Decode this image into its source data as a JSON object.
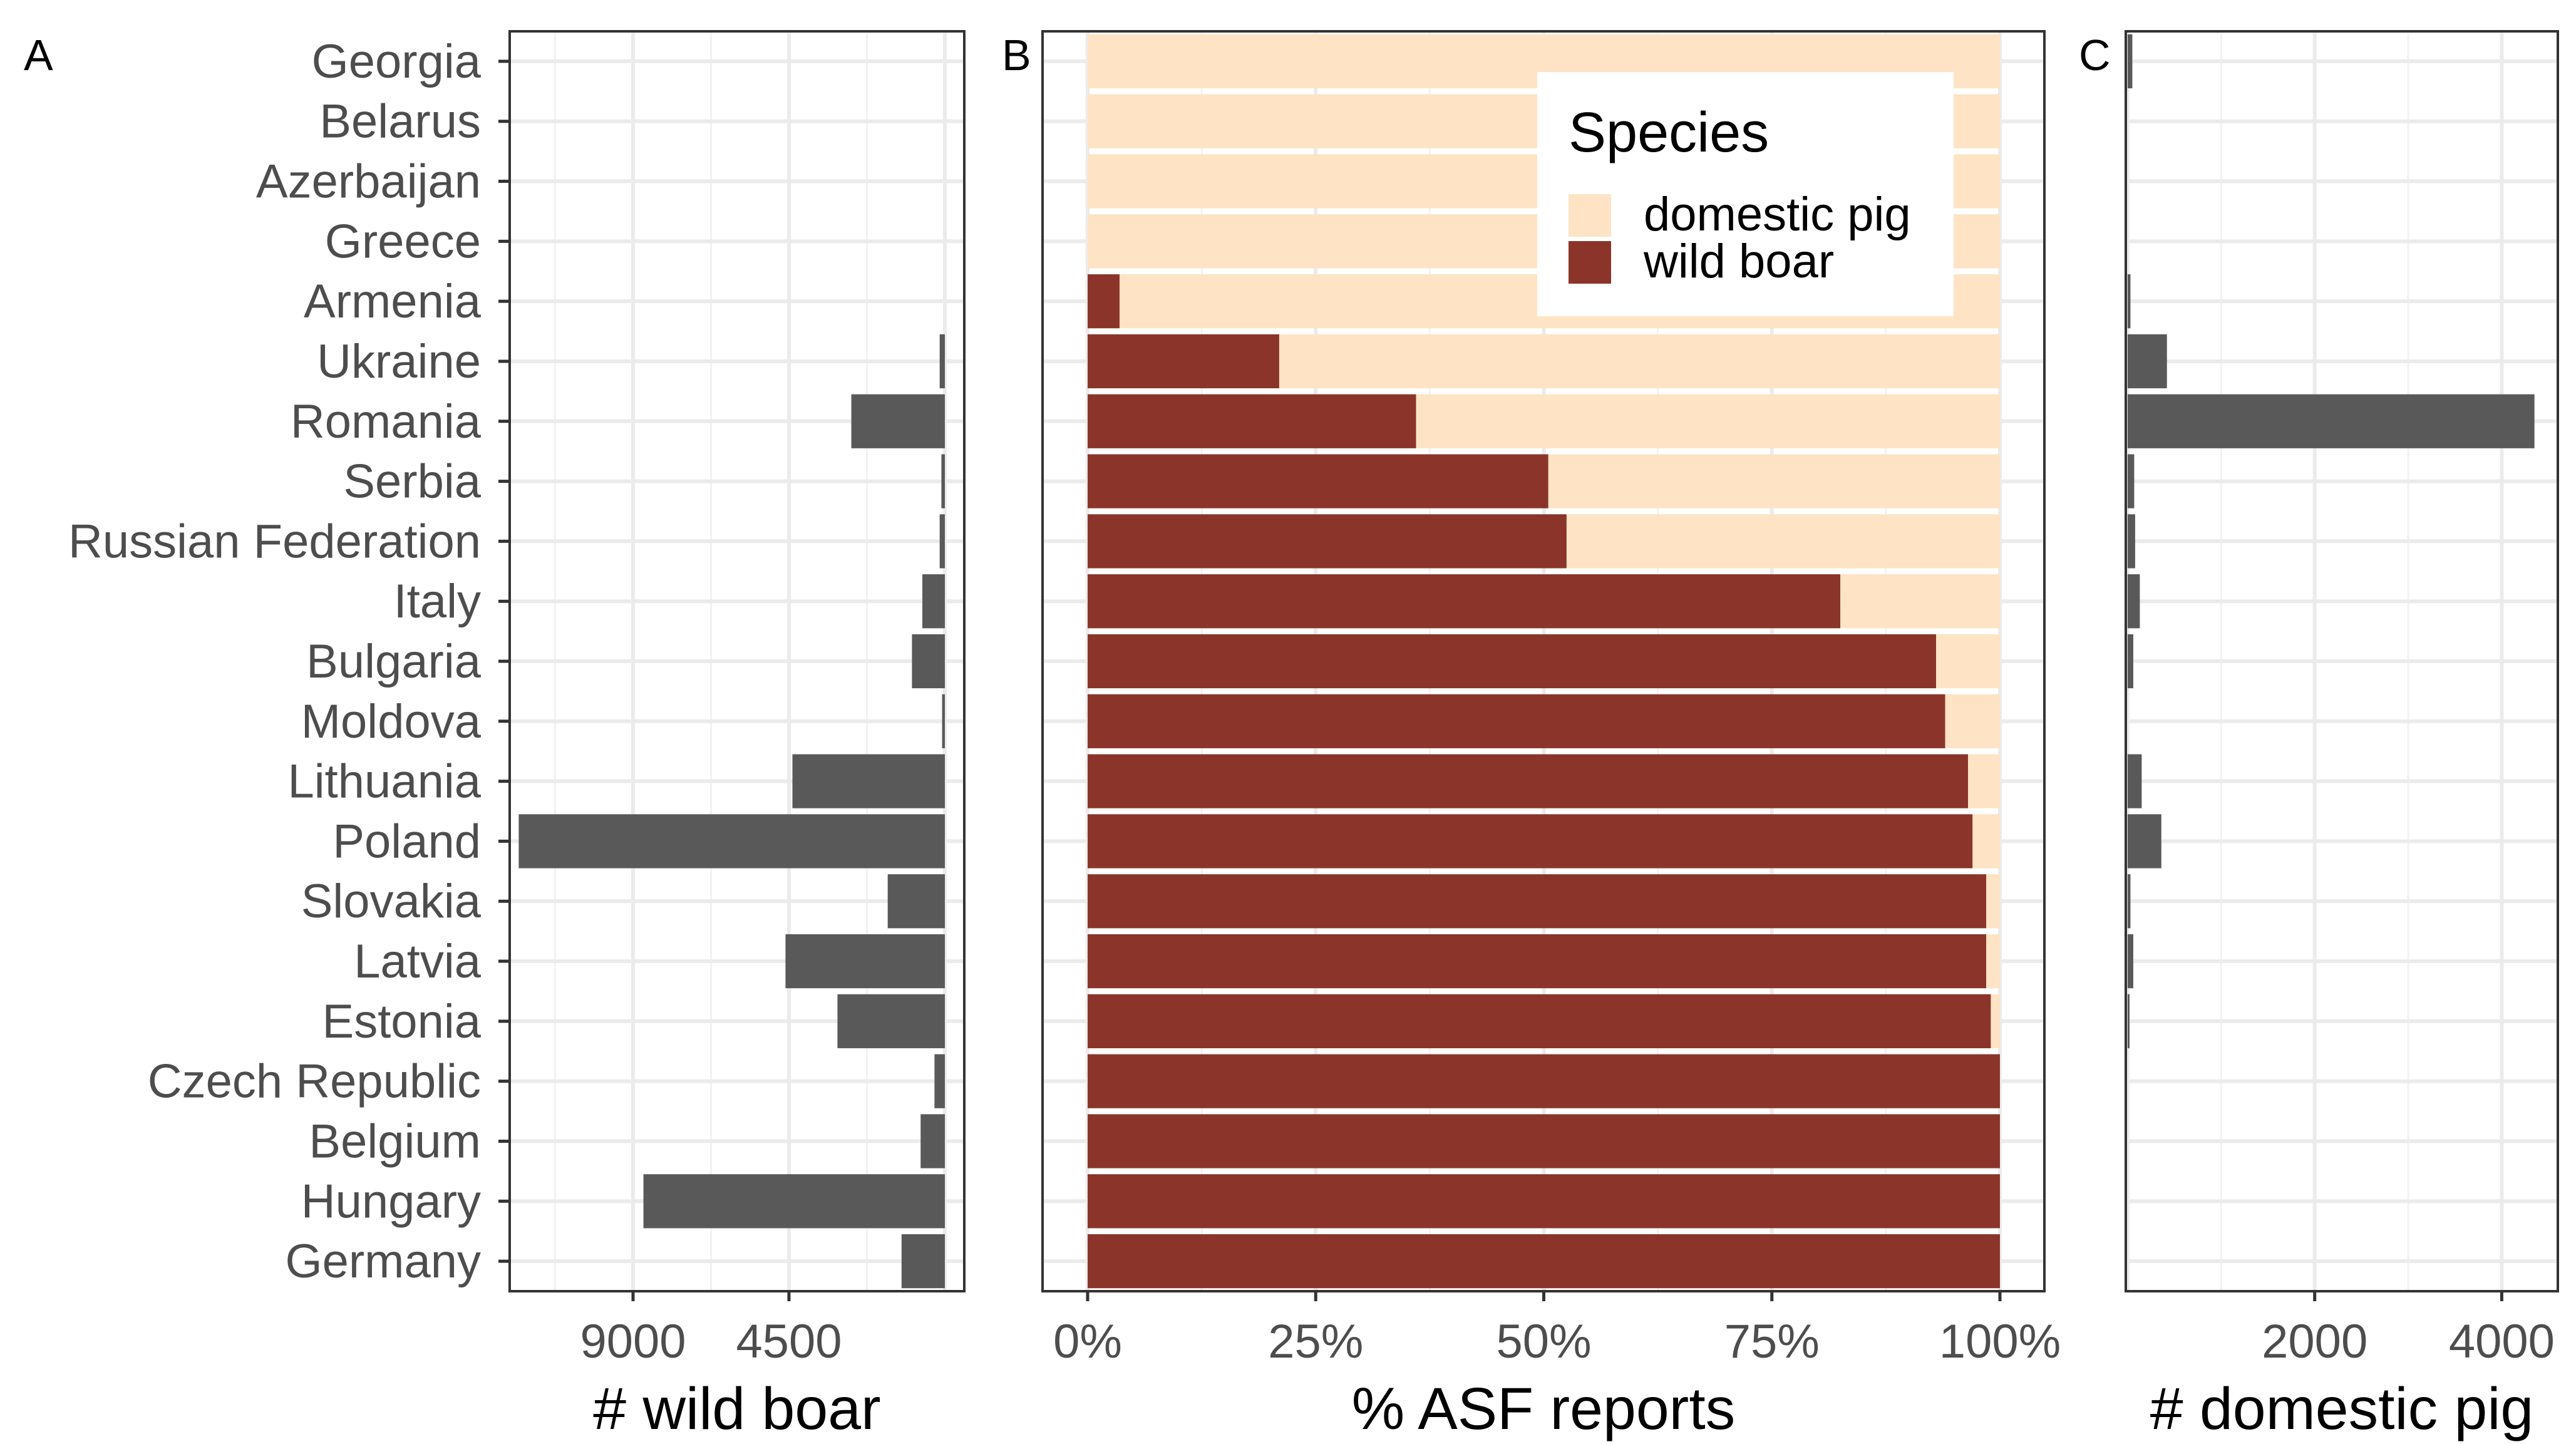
{
  "chart_data": {
    "type": "bar",
    "countries": [
      "Georgia",
      "Belarus",
      "Azerbaijan",
      "Greece",
      "Armenia",
      "Ukraine",
      "Romania",
      "Serbia",
      "Russian Federation",
      "Italy",
      "Bulgaria",
      "Moldova",
      "Lithuania",
      "Poland",
      "Slovakia",
      "Latvia",
      "Estonia",
      "Czech Republic",
      "Belgium",
      "Hungary",
      "Germany"
    ],
    "panels": [
      {
        "tag": "A",
        "type": "bar",
        "orientation": "horizontal",
        "x_reversed": true,
        "xlabel": "# wild boar",
        "xlim": [
          0,
          12000
        ],
        "xticks": [
          9000,
          4500
        ],
        "xtick_labels": [
          "9000",
          "4500"
        ],
        "bar_color": "#595959",
        "series": [
          {
            "values": [
              0,
              0,
              0,
              0,
              0,
              150,
              2700,
              100,
              150,
              650,
              950,
              80,
              4400,
              12300,
              1650,
              4600,
              3100,
              300,
              700,
              8700,
              1250
            ]
          }
        ]
      },
      {
        "tag": "B",
        "type": "bar",
        "stacked": true,
        "orientation": "horizontal",
        "xlabel": "% ASF reports",
        "xlim": [
          0,
          100
        ],
        "xticks": [
          0,
          25,
          50,
          75,
          100
        ],
        "xtick_labels": [
          "0%",
          "25%",
          "50%",
          "75%",
          "100%"
        ],
        "series": [
          {
            "name": "wild boar",
            "color": "#8b352a",
            "values": [
              0,
              0,
              0,
              0,
              3.5,
              21,
              36,
              50.5,
              52.5,
              82.5,
              93,
              94,
              96.5,
              97,
              98.5,
              98.5,
              99,
              100,
              100,
              100,
              100
            ]
          },
          {
            "name": "domestic pig",
            "color": "#fee3c4",
            "values": [
              100,
              100,
              100,
              100,
              96.5,
              79,
              64,
              49.5,
              47.5,
              17.5,
              7,
              6,
              3.5,
              3,
              1.5,
              1.5,
              1,
              0,
              0,
              0,
              0
            ]
          }
        ],
        "legend": {
          "title": "Species",
          "position": "top-right",
          "items": [
            "domestic pig",
            "wild boar"
          ]
        }
      },
      {
        "tag": "C",
        "type": "bar",
        "orientation": "horizontal",
        "xlabel": "# domestic pig",
        "xlim": [
          -20,
          4600
        ],
        "xticks": [
          2000,
          4000
        ],
        "xtick_labels": [
          "2000",
          "4000"
        ],
        "bar_color": "#595959",
        "series": [
          {
            "values": [
              50,
              0,
              0,
              0,
              30,
              420,
              4350,
              70,
              80,
              130,
              60,
              0,
              150,
              360,
              30,
              60,
              20,
              0,
              0,
              0,
              0
            ]
          }
        ]
      }
    ],
    "grid": true
  }
}
